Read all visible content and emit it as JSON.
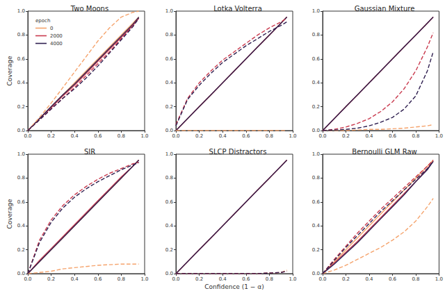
{
  "chart_data": [
    {
      "type": "line",
      "title": "Two Moons",
      "ylabel": "Coverage",
      "legend": "upper left",
      "legend_title": "epoch",
      "xlim": [
        0,
        1
      ],
      "ylim": [
        0,
        1
      ],
      "xticks": [
        {
          "value": 0,
          "label": "0.0"
        },
        {
          "value": 0.2,
          "label": "0.2"
        },
        {
          "value": 0.4,
          "label": "0.4"
        },
        {
          "value": 0.6,
          "label": "0.6"
        },
        {
          "value": 0.8,
          "label": "0.8"
        },
        {
          "value": 1,
          "label": "1.0"
        }
      ],
      "yticks": [
        {
          "value": 0,
          "label": "0.0"
        },
        {
          "value": 0.2,
          "label": "0.2"
        },
        {
          "value": 0.4,
          "label": "0.4"
        },
        {
          "value": 0.6,
          "label": "0.6"
        },
        {
          "value": 0.8,
          "label": "0.8"
        },
        {
          "value": 1,
          "label": "1.0"
        }
      ],
      "x": [
        0,
        0.1,
        0.2,
        0.3,
        0.4,
        0.5,
        0.6,
        0.7,
        0.8,
        0.9,
        0.95
      ],
      "series": [
        {
          "name": "0",
          "color": "#f5a36c",
          "line_style": "solid",
          "values": [
            0,
            0.1,
            0.2,
            0.3,
            0.4,
            0.5,
            0.6,
            0.7,
            0.8,
            0.9,
            0.95
          ]
        },
        {
          "name": "2000",
          "color": "#c93a4e",
          "line_style": "solid",
          "values": [
            0,
            0.1,
            0.19,
            0.29,
            0.38,
            0.48,
            0.58,
            0.68,
            0.78,
            0.88,
            0.94
          ]
        },
        {
          "name": "4000",
          "color": "#2e1e4f",
          "line_style": "solid",
          "values": [
            0,
            0.1,
            0.2,
            0.3,
            0.39,
            0.49,
            0.59,
            0.69,
            0.79,
            0.89,
            0.95
          ]
        },
        {
          "name": "0",
          "color": "#f5a36c",
          "line_style": "dashed",
          "values": [
            0,
            0.11,
            0.23,
            0.36,
            0.49,
            0.62,
            0.75,
            0.86,
            0.95,
            0.99,
            1.0
          ]
        },
        {
          "name": "2000",
          "color": "#c93a4e",
          "line_style": "dashed",
          "values": [
            0,
            0.09,
            0.18,
            0.27,
            0.36,
            0.46,
            0.56,
            0.66,
            0.77,
            0.88,
            0.94
          ]
        },
        {
          "name": "4000",
          "color": "#2e1e4f",
          "line_style": "dashed",
          "values": [
            0,
            0.09,
            0.18,
            0.27,
            0.35,
            0.44,
            0.54,
            0.65,
            0.76,
            0.87,
            0.94
          ]
        }
      ]
    },
    {
      "type": "line",
      "title": "Lotka Volterra",
      "xlim": [
        0,
        1
      ],
      "ylim": [
        0,
        1
      ],
      "xticks": [
        {
          "value": 0,
          "label": "0.0"
        },
        {
          "value": 0.2,
          "label": "0.2"
        },
        {
          "value": 0.4,
          "label": "0.4"
        },
        {
          "value": 0.6,
          "label": "0.6"
        },
        {
          "value": 0.8,
          "label": "0.8"
        },
        {
          "value": 1,
          "label": "1.0"
        }
      ],
      "yticks": [
        {
          "value": 0,
          "label": "0.0"
        },
        {
          "value": 0.2,
          "label": "0.2"
        },
        {
          "value": 0.4,
          "label": "0.4"
        },
        {
          "value": 0.6,
          "label": "0.6"
        },
        {
          "value": 0.8,
          "label": "0.8"
        },
        {
          "value": 1,
          "label": "1.0"
        }
      ],
      "x": [
        0,
        0.1,
        0.2,
        0.3,
        0.4,
        0.5,
        0.6,
        0.7,
        0.8,
        0.9,
        0.95
      ],
      "series": [
        {
          "name": "0",
          "color": "#f5a36c",
          "line_style": "solid",
          "values": [
            0,
            0.1,
            0.2,
            0.3,
            0.4,
            0.5,
            0.6,
            0.7,
            0.8,
            0.9,
            0.95
          ]
        },
        {
          "name": "2000",
          "color": "#c93a4e",
          "line_style": "solid",
          "values": [
            0,
            0.1,
            0.2,
            0.3,
            0.4,
            0.5,
            0.6,
            0.7,
            0.8,
            0.9,
            0.95
          ]
        },
        {
          "name": "4000",
          "color": "#2e1e4f",
          "line_style": "solid",
          "values": [
            0,
            0.1,
            0.2,
            0.3,
            0.4,
            0.5,
            0.6,
            0.7,
            0.8,
            0.9,
            0.95
          ]
        },
        {
          "name": "0",
          "color": "#f5a36c",
          "line_style": "dashed",
          "values": [
            0,
            0,
            0,
            0,
            0,
            0,
            0,
            0,
            0,
            0,
            0
          ]
        },
        {
          "name": "2000",
          "color": "#c93a4e",
          "line_style": "dashed",
          "values": [
            0.05,
            0.27,
            0.4,
            0.5,
            0.59,
            0.66,
            0.73,
            0.8,
            0.86,
            0.91,
            0.94
          ]
        },
        {
          "name": "4000",
          "color": "#2e1e4f",
          "line_style": "dashed",
          "values": [
            0.04,
            0.26,
            0.38,
            0.48,
            0.57,
            0.64,
            0.71,
            0.77,
            0.83,
            0.88,
            0.91
          ]
        }
      ]
    },
    {
      "type": "line",
      "title": "Gaussian Mixture",
      "xlim": [
        0,
        1
      ],
      "ylim": [
        0,
        1
      ],
      "xticks": [
        {
          "value": 0,
          "label": "0.0"
        },
        {
          "value": 0.2,
          "label": "0.2"
        },
        {
          "value": 0.4,
          "label": "0.4"
        },
        {
          "value": 0.6,
          "label": "0.6"
        },
        {
          "value": 0.8,
          "label": "0.8"
        },
        {
          "value": 1,
          "label": "1.0"
        }
      ],
      "yticks": [
        {
          "value": 0,
          "label": "0.0"
        },
        {
          "value": 0.2,
          "label": "0.2"
        },
        {
          "value": 0.4,
          "label": "0.4"
        },
        {
          "value": 0.6,
          "label": "0.6"
        },
        {
          "value": 0.8,
          "label": "0.8"
        },
        {
          "value": 1,
          "label": "1.0"
        }
      ],
      "x": [
        0,
        0.1,
        0.2,
        0.3,
        0.4,
        0.5,
        0.6,
        0.7,
        0.8,
        0.9,
        0.95
      ],
      "series": [
        {
          "name": "0",
          "color": "#f5a36c",
          "line_style": "solid",
          "values": [
            0,
            0.1,
            0.2,
            0.3,
            0.4,
            0.5,
            0.6,
            0.7,
            0.8,
            0.9,
            0.95
          ]
        },
        {
          "name": "2000",
          "color": "#c93a4e",
          "line_style": "solid",
          "values": [
            0,
            0.1,
            0.2,
            0.3,
            0.4,
            0.5,
            0.6,
            0.7,
            0.8,
            0.9,
            0.95
          ]
        },
        {
          "name": "4000",
          "color": "#2e1e4f",
          "line_style": "solid",
          "values": [
            0,
            0.1,
            0.2,
            0.3,
            0.4,
            0.5,
            0.6,
            0.7,
            0.8,
            0.9,
            0.95
          ]
        },
        {
          "name": "0",
          "color": "#f5a36c",
          "line_style": "dashed",
          "values": [
            0,
            0,
            0,
            0.005,
            0.01,
            0.01,
            0.015,
            0.02,
            0.03,
            0.04,
            0.05
          ]
        },
        {
          "name": "2000",
          "color": "#c93a4e",
          "line_style": "dashed",
          "values": [
            0,
            0.01,
            0.03,
            0.06,
            0.1,
            0.16,
            0.24,
            0.35,
            0.5,
            0.7,
            0.82
          ]
        },
        {
          "name": "4000",
          "color": "#2e1e4f",
          "line_style": "dashed",
          "values": [
            0,
            0.005,
            0.01,
            0.02,
            0.04,
            0.07,
            0.11,
            0.18,
            0.29,
            0.5,
            0.66
          ]
        }
      ]
    },
    {
      "type": "line",
      "title": "SIR",
      "ylabel": "Coverage",
      "xlim": [
        0,
        1
      ],
      "ylim": [
        0,
        1
      ],
      "xticks": [
        {
          "value": 0,
          "label": "0.0"
        },
        {
          "value": 0.2,
          "label": "0.2"
        },
        {
          "value": 0.4,
          "label": "0.4"
        },
        {
          "value": 0.6,
          "label": "0.6"
        },
        {
          "value": 0.8,
          "label": "0.8"
        },
        {
          "value": 1,
          "label": "1.0"
        }
      ],
      "yticks": [
        {
          "value": 0,
          "label": "0.0"
        },
        {
          "value": 0.2,
          "label": "0.2"
        },
        {
          "value": 0.4,
          "label": "0.4"
        },
        {
          "value": 0.6,
          "label": "0.6"
        },
        {
          "value": 0.8,
          "label": "0.8"
        },
        {
          "value": 1,
          "label": "1.0"
        }
      ],
      "x": [
        0,
        0.1,
        0.2,
        0.3,
        0.4,
        0.5,
        0.6,
        0.7,
        0.8,
        0.9,
        0.95
      ],
      "series": [
        {
          "name": "0",
          "color": "#f5a36c",
          "line_style": "solid",
          "values": [
            0,
            0.1,
            0.2,
            0.3,
            0.4,
            0.5,
            0.6,
            0.7,
            0.8,
            0.9,
            0.95
          ]
        },
        {
          "name": "2000",
          "color": "#c93a4e",
          "line_style": "solid",
          "values": [
            0,
            0.11,
            0.21,
            0.31,
            0.41,
            0.51,
            0.61,
            0.71,
            0.81,
            0.9,
            0.95
          ]
        },
        {
          "name": "4000",
          "color": "#2e1e4f",
          "line_style": "solid",
          "values": [
            0,
            0.1,
            0.2,
            0.3,
            0.4,
            0.5,
            0.6,
            0.7,
            0.8,
            0.9,
            0.95
          ]
        },
        {
          "name": "0",
          "color": "#f5a36c",
          "line_style": "dashed",
          "values": [
            0,
            0.01,
            0.02,
            0.04,
            0.05,
            0.06,
            0.07,
            0.075,
            0.08,
            0.08,
            0.08
          ]
        },
        {
          "name": "2000",
          "color": "#c93a4e",
          "line_style": "dashed",
          "values": [
            0,
            0.28,
            0.45,
            0.57,
            0.66,
            0.73,
            0.79,
            0.84,
            0.88,
            0.92,
            0.93
          ]
        },
        {
          "name": "4000",
          "color": "#2e1e4f",
          "line_style": "dashed",
          "values": [
            0,
            0.26,
            0.43,
            0.55,
            0.64,
            0.71,
            0.77,
            0.82,
            0.87,
            0.91,
            0.93
          ]
        }
      ]
    },
    {
      "type": "line",
      "title": "SLCP Distractors",
      "xlabel": "Confidence (1 − α)",
      "xlim": [
        0,
        1
      ],
      "ylim": [
        0,
        1
      ],
      "xticks": [
        {
          "value": 0,
          "label": "0.0"
        },
        {
          "value": 0.2,
          "label": "0.2"
        },
        {
          "value": 0.4,
          "label": "0.4"
        },
        {
          "value": 0.6,
          "label": "0.6"
        },
        {
          "value": 0.8,
          "label": "0.8"
        },
        {
          "value": 1,
          "label": "1.0"
        }
      ],
      "yticks": [
        {
          "value": 0,
          "label": "0.0"
        },
        {
          "value": 0.2,
          "label": "0.2"
        },
        {
          "value": 0.4,
          "label": "0.4"
        },
        {
          "value": 0.6,
          "label": "0.6"
        },
        {
          "value": 0.8,
          "label": "0.8"
        },
        {
          "value": 1,
          "label": "1.0"
        }
      ],
      "x": [
        0,
        0.1,
        0.2,
        0.3,
        0.4,
        0.5,
        0.6,
        0.7,
        0.8,
        0.9,
        0.95
      ],
      "series": [
        {
          "name": "0",
          "color": "#f5a36c",
          "line_style": "solid",
          "values": [
            0,
            0.1,
            0.2,
            0.3,
            0.4,
            0.5,
            0.6,
            0.7,
            0.8,
            0.9,
            0.95
          ]
        },
        {
          "name": "2000",
          "color": "#c93a4e",
          "line_style": "solid",
          "values": [
            0,
            0.1,
            0.2,
            0.3,
            0.4,
            0.5,
            0.6,
            0.7,
            0.8,
            0.9,
            0.95
          ]
        },
        {
          "name": "4000",
          "color": "#2e1e4f",
          "line_style": "solid",
          "values": [
            0,
            0.1,
            0.2,
            0.3,
            0.4,
            0.5,
            0.6,
            0.7,
            0.8,
            0.9,
            0.95
          ]
        },
        {
          "name": "0",
          "color": "#f5a36c",
          "line_style": "dashed",
          "values": [
            0,
            0,
            0,
            0,
            0,
            0,
            0,
            0,
            0.005,
            0.01,
            0.03
          ]
        },
        {
          "name": "2000",
          "color": "#c93a4e",
          "line_style": "dashed",
          "values": [
            0,
            0,
            0,
            0,
            0,
            0,
            0,
            0,
            0.005,
            0.01,
            0.02
          ]
        },
        {
          "name": "4000",
          "color": "#2e1e4f",
          "line_style": "dashed",
          "values": [
            0,
            0,
            0,
            0,
            0,
            0,
            0,
            0,
            0.005,
            0.01,
            0.02
          ]
        }
      ]
    },
    {
      "type": "line",
      "title": "Bernoulli GLM Raw",
      "xlim": [
        0,
        1
      ],
      "ylim": [
        0,
        1
      ],
      "xticks": [
        {
          "value": 0,
          "label": "0.0"
        },
        {
          "value": 0.2,
          "label": "0.2"
        },
        {
          "value": 0.4,
          "label": "0.4"
        },
        {
          "value": 0.6,
          "label": "0.6"
        },
        {
          "value": 0.8,
          "label": "0.8"
        },
        {
          "value": 1,
          "label": "1.0"
        }
      ],
      "yticks": [
        {
          "value": 0,
          "label": "0.0"
        },
        {
          "value": 0.2,
          "label": "0.2"
        },
        {
          "value": 0.4,
          "label": "0.4"
        },
        {
          "value": 0.6,
          "label": "0.6"
        },
        {
          "value": 0.8,
          "label": "0.8"
        },
        {
          "value": 1,
          "label": "1.0"
        }
      ],
      "x": [
        0,
        0.1,
        0.2,
        0.3,
        0.4,
        0.5,
        0.6,
        0.7,
        0.8,
        0.9,
        0.95
      ],
      "series": [
        {
          "name": "0",
          "color": "#f5a36c",
          "line_style": "solid",
          "values": [
            0,
            0.1,
            0.2,
            0.3,
            0.4,
            0.5,
            0.6,
            0.7,
            0.8,
            0.9,
            0.95
          ]
        },
        {
          "name": "2000",
          "color": "#c93a4e",
          "line_style": "solid",
          "values": [
            0,
            0.09,
            0.18,
            0.27,
            0.37,
            0.47,
            0.57,
            0.67,
            0.77,
            0.88,
            0.94
          ]
        },
        {
          "name": "4000",
          "color": "#2e1e4f",
          "line_style": "solid",
          "values": [
            0,
            0.08,
            0.17,
            0.26,
            0.36,
            0.46,
            0.56,
            0.66,
            0.77,
            0.87,
            0.94
          ]
        },
        {
          "name": "0",
          "color": "#f5a36c",
          "line_style": "dashed",
          "values": [
            0,
            0.03,
            0.07,
            0.12,
            0.17,
            0.22,
            0.28,
            0.35,
            0.44,
            0.56,
            0.63
          ]
        },
        {
          "name": "2000",
          "color": "#c93a4e",
          "line_style": "dashed",
          "values": [
            0,
            0.12,
            0.23,
            0.34,
            0.44,
            0.54,
            0.63,
            0.72,
            0.81,
            0.9,
            0.95
          ]
        },
        {
          "name": "4000",
          "color": "#2e1e4f",
          "line_style": "dashed",
          "values": [
            0,
            0.11,
            0.22,
            0.32,
            0.42,
            0.52,
            0.61,
            0.7,
            0.79,
            0.88,
            0.94
          ]
        }
      ]
    }
  ]
}
